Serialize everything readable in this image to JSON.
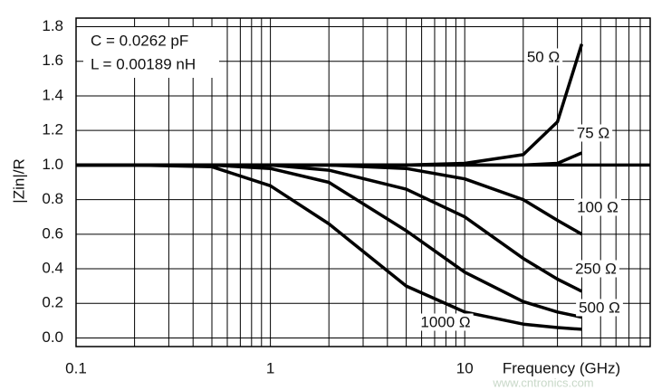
{
  "chart_data": {
    "type": "line",
    "annotations": [
      "C = 0.0262 pF",
      "L = 0.00189 nH"
    ],
    "ylabel": "|Zin|/R",
    "xlabel": "Frequency (GHz)",
    "watermark": "www.cntronics.com",
    "x": [
      0.1,
      0.2,
      0.5,
      1,
      2,
      5,
      10,
      20,
      30,
      40
    ],
    "series": [
      {
        "name": "50 Ω",
        "color": "#000000",
        "values": [
          1,
          1,
          1,
          1,
          1,
          1,
          1.01,
          1.06,
          1.25,
          1.7
        ]
      },
      {
        "name": "75 Ω",
        "color": "#000000",
        "values": [
          1,
          1,
          1,
          1,
          1,
          1,
          1,
          1,
          1.01,
          1.07
        ]
      },
      {
        "name": "100 Ω",
        "color": "#000000",
        "values": [
          1,
          1,
          1,
          1,
          1,
          0.98,
          0.92,
          0.8,
          0.68,
          0.6
        ]
      },
      {
        "name": "250 Ω",
        "color": "#000000",
        "values": [
          1,
          1,
          1,
          1,
          0.97,
          0.86,
          0.7,
          0.46,
          0.34,
          0.27
        ]
      },
      {
        "name": "500 Ω",
        "color": "#000000",
        "values": [
          1,
          1,
          1,
          0.98,
          0.9,
          0.62,
          0.38,
          0.21,
          0.15,
          0.12
        ]
      },
      {
        "name": "1000 Ω",
        "color": "#000000",
        "values": [
          1,
          1,
          0.99,
          0.88,
          0.66,
          0.3,
          0.15,
          0.08,
          0.06,
          0.05
        ]
      }
    ],
    "reference_line": 1,
    "xscale": "log",
    "xlim": [
      0.1,
      90
    ],
    "xticks": [
      0.1,
      1,
      10
    ],
    "xminor": [
      0.2,
      0.3,
      0.4,
      0.5,
      0.6,
      0.7,
      0.8,
      0.9,
      2,
      3,
      4,
      5,
      6,
      7,
      8,
      9,
      20,
      30,
      40,
      50,
      60,
      70,
      80,
      90
    ],
    "ylim": [
      -0.05,
      1.85
    ],
    "yticks": [
      {
        "value": 0,
        "label": "0.0"
      },
      0.2,
      0.4,
      0.6,
      0.8,
      {
        "value": 1,
        "label": "1.0"
      },
      1.2,
      1.4,
      1.6,
      1.8
    ],
    "grid": true
  }
}
